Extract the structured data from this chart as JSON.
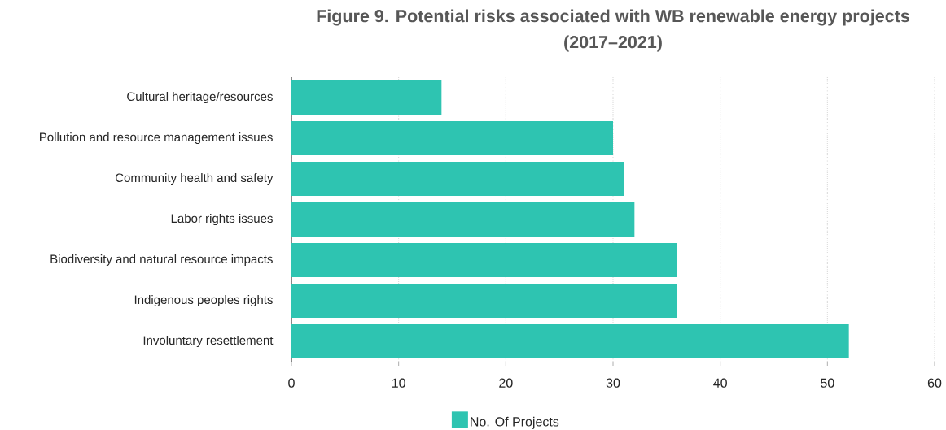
{
  "chart_data": {
    "type": "bar",
    "orientation": "horizontal",
    "title": "Figure 9. Potential risks associated with WB renewable energy projects (2017–2021)",
    "categories": [
      "Cultural heritage/resources",
      "Pollution and resource management issues",
      "Community health and safety",
      "Labor rights issues",
      "Biodiversity and natural resource impacts",
      "Indigenous peoples rights",
      "Involuntary resettlement"
    ],
    "series": [
      {
        "name": "No. Of Projects",
        "color": "#2ec4b1",
        "values": [
          14,
          30,
          31,
          32,
          36,
          36,
          52
        ]
      }
    ],
    "xlim": [
      0,
      60
    ],
    "xticks": [
      0,
      10,
      20,
      30,
      40,
      50,
      60
    ],
    "grid": "x",
    "legend": "bottom"
  }
}
